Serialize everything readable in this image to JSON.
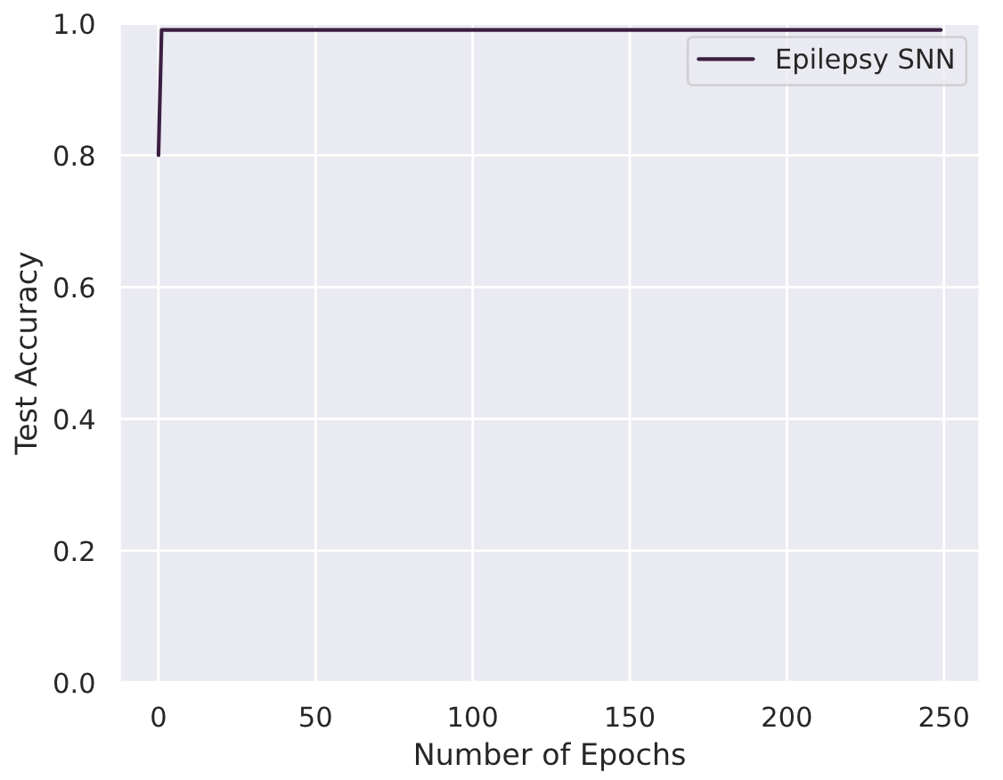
{
  "chart_data": {
    "type": "line",
    "xlabel": "Number of Epochs",
    "ylabel": "Test Accuracy",
    "series": [
      {
        "name": "Epilepsy SNN",
        "color": "#3b1f42",
        "x": [
          0,
          1,
          249
        ],
        "values": [
          0.8,
          0.99,
          0.99
        ]
      }
    ],
    "xlim": [
      -12.45,
      261.45
    ],
    "xticks": [
      0,
      50,
      100,
      150,
      200,
      250
    ],
    "ylim": [
      0,
      1.0
    ],
    "yticks": [
      {
        "value": 0,
        "label": "0.0"
      },
      {
        "value": 0.2,
        "label": "0.2"
      },
      {
        "value": 0.4,
        "label": "0.4"
      },
      {
        "value": 0.6,
        "label": "0.6"
      },
      {
        "value": 0.8,
        "label": "0.8"
      },
      {
        "value": 1.0,
        "label": "1.0"
      }
    ],
    "grid": true,
    "legend": "top right",
    "line_style": "solid",
    "marker": "none"
  }
}
